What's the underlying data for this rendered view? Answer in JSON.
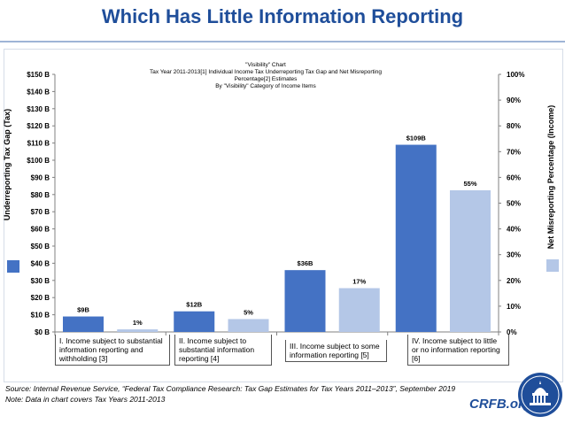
{
  "page_title": "Which Has Little Information Reporting",
  "chart_data": {
    "type": "bar",
    "title": "\"Visibility\" Chart",
    "subtitle_line1": "Tax Year 2011-2013[1] Individual Income Tax Underreporting Tax Gap and Net Misreporting Percentage[2] Estimates",
    "subtitle_line2": "By \"Visibility\" Category of Income Items",
    "ylabel": "Underreporting Tax Gap (Tax)",
    "ylabel_right": "Net Misreporting Percentage (Income)",
    "categories": [
      "I. Income subject to substantial information reporting and withholding [3]",
      "II. Income subject to substantial information reporting [4]",
      "III. Income subject to some information reporting [5]",
      "IV. Income subject to little or no information reporting [6]"
    ],
    "series": [
      {
        "values": [
          9,
          12,
          36,
          109
        ],
        "labels": [
          "$9B",
          "$12B",
          "$36B",
          "$109B"
        ],
        "color": "#4472c4",
        "axis": "left"
      },
      {
        "values": [
          1,
          5,
          17,
          55
        ],
        "labels": [
          "1%",
          "5%",
          "17%",
          "55%"
        ],
        "color": "#b4c7e7",
        "axis": "right"
      }
    ],
    "ylim": [
      0,
      150
    ],
    "ylim_right": [
      0,
      100
    ],
    "yticks": [
      "$0 B",
      "$10 B",
      "$20 B",
      "$30 B",
      "$40 B",
      "$50 B",
      "$60 B",
      "$70 B",
      "$80 B",
      "$90 B",
      "$100 B",
      "$110 B",
      "$120 B",
      "$130 B",
      "$140 B",
      "$150 B"
    ],
    "yticks_right": [
      "0%",
      "10%",
      "20%",
      "30%",
      "40%",
      "50%",
      "60%",
      "70%",
      "80%",
      "90%",
      "100%"
    ],
    "grid": false
  },
  "footer": {
    "source": "Source: Internal Revenue Service, “Federal Tax Compliance Research: Tax Gap Estimates for Tax Years 2011–2013”, September 2019",
    "note": "Note: Data in chart covers Tax Years 2011-2013"
  },
  "brand": "CRFB.org",
  "logo_icon": "capitol-seal-icon"
}
